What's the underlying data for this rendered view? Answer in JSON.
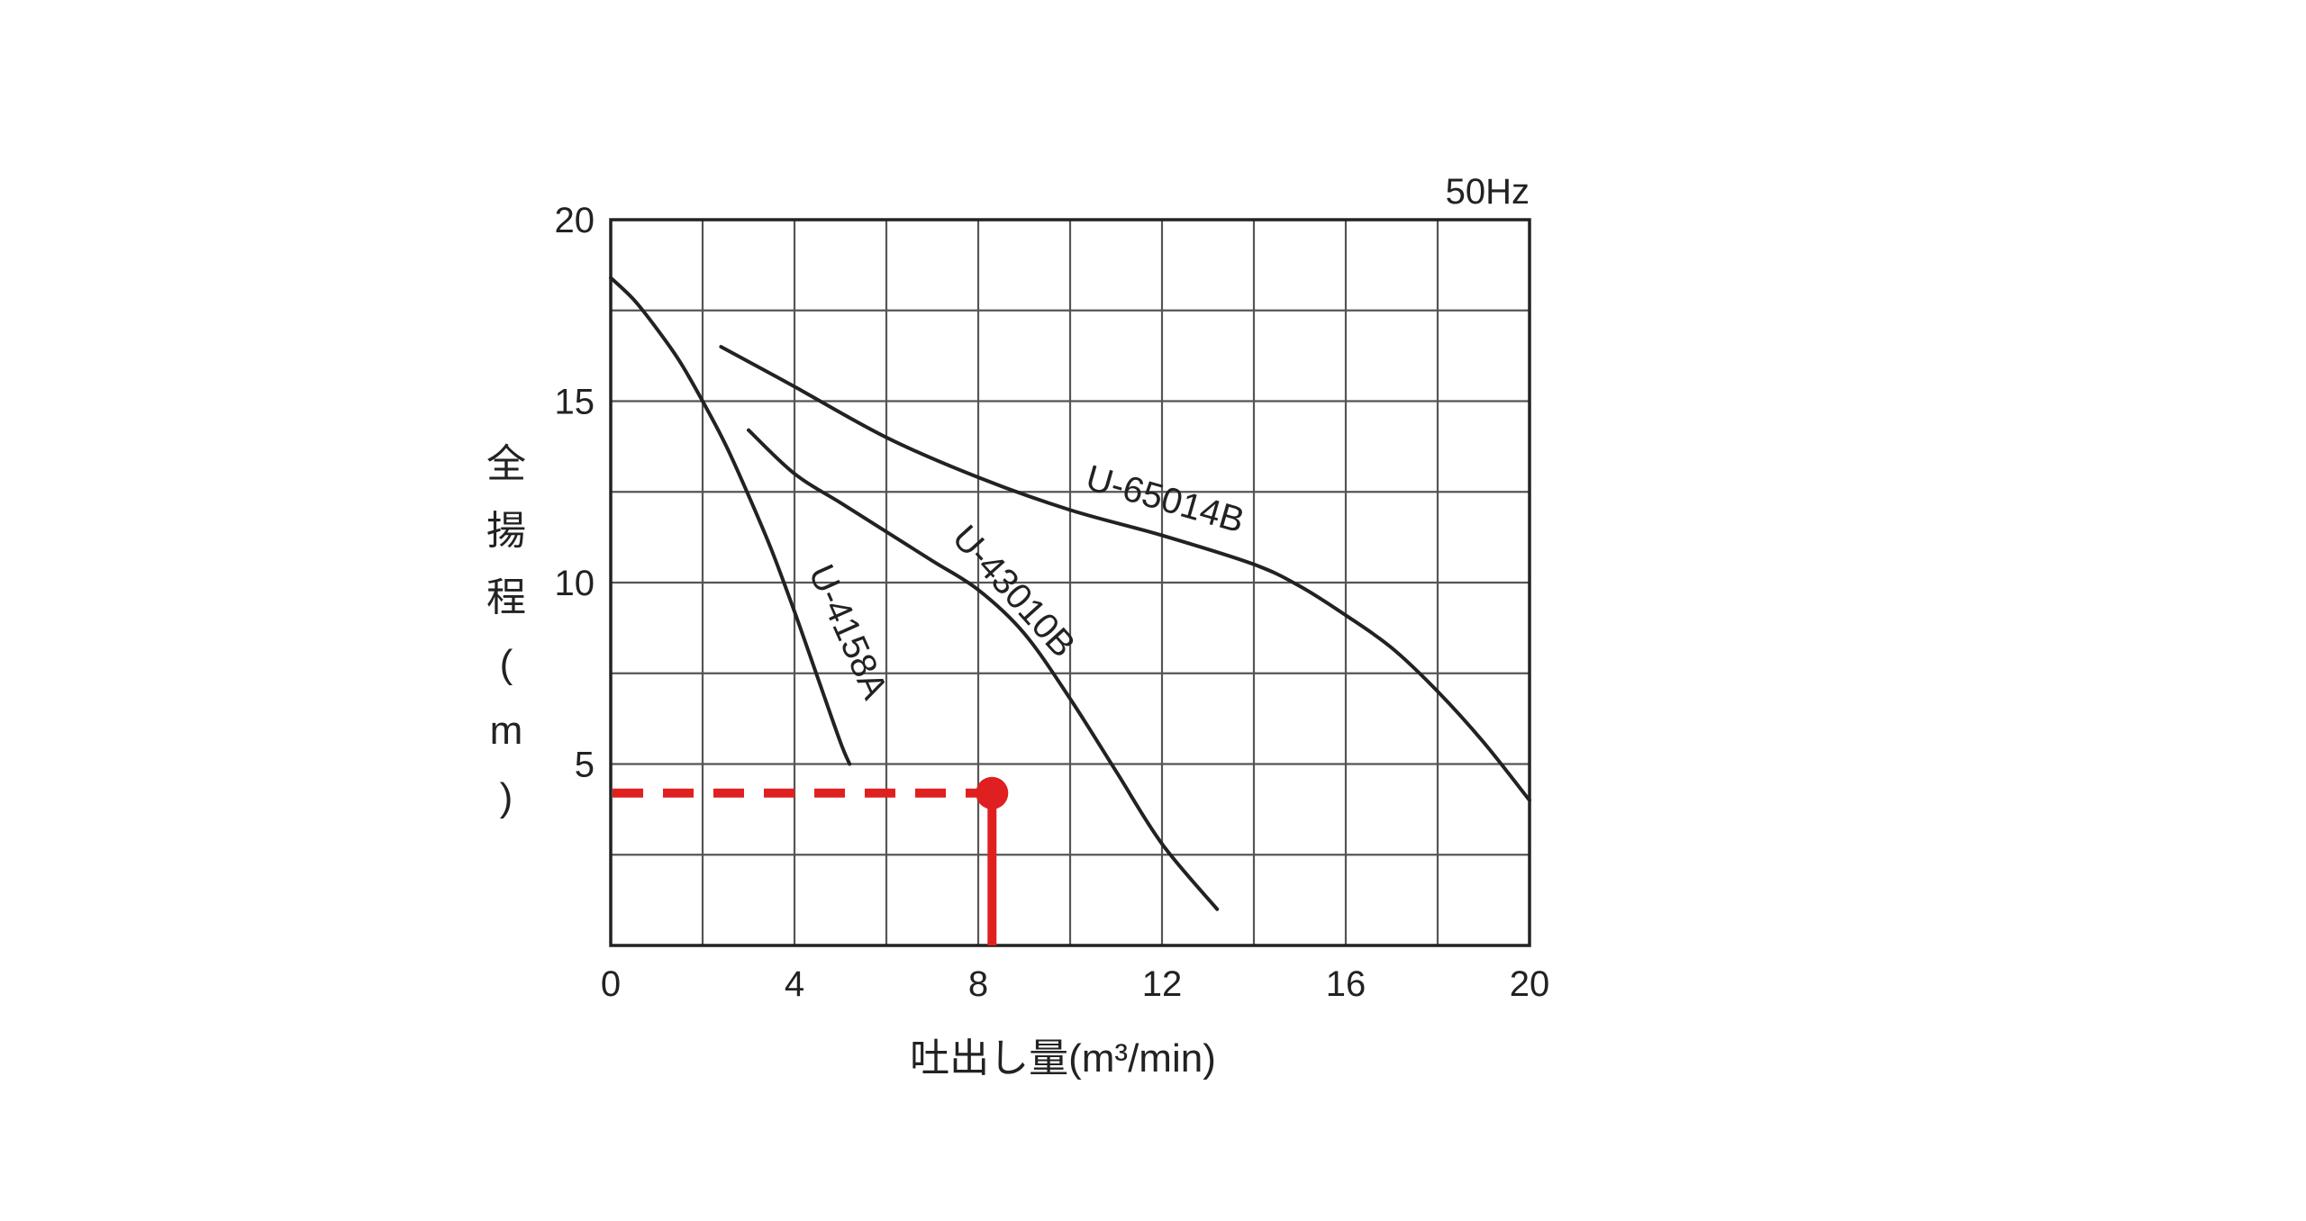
{
  "chart_data": {
    "type": "line",
    "title": "",
    "frequency_label": "50Hz",
    "xlabel": "吐出し量(m³/min)",
    "ylabel": [
      "全",
      "揚",
      "程",
      "(",
      "m",
      ")"
    ],
    "xlim": [
      0,
      20
    ],
    "ylim": [
      0,
      20
    ],
    "x_ticks": [
      0,
      4,
      8,
      12,
      16,
      20
    ],
    "y_ticks": [
      5,
      10,
      15,
      20
    ],
    "x_grid": [
      0,
      2,
      4,
      6,
      8,
      10,
      12,
      14,
      16,
      18,
      20
    ],
    "y_grid": [
      0,
      2.5,
      5,
      7.5,
      10,
      12.5,
      15,
      17.5,
      20
    ],
    "grid": true,
    "legend": "none",
    "series": [
      {
        "name": "U-4158A",
        "x": [
          0,
          0.5,
          1.0,
          1.5,
          2.0,
          2.5,
          3.0,
          3.5,
          4.0,
          4.5,
          5.0,
          5.2
        ],
        "y": [
          18.4,
          17.8,
          17.0,
          16.1,
          15.0,
          13.8,
          12.4,
          10.9,
          9.2,
          7.4,
          5.6,
          5.0
        ]
      },
      {
        "name": "U-43010B",
        "x": [
          3.0,
          4.0,
          5.0,
          6.0,
          7.0,
          8.0,
          9.0,
          10.0,
          11.0,
          12.0,
          13.2
        ],
        "y": [
          14.2,
          13.0,
          12.2,
          11.4,
          10.6,
          9.8,
          8.6,
          6.8,
          4.8,
          2.8,
          1.0
        ]
      },
      {
        "name": "U-65014B",
        "x": [
          2.4,
          4.0,
          6.0,
          8.0,
          10.0,
          12.0,
          14.0,
          15.0,
          16.0,
          17.0,
          18.0,
          19.0,
          20.0
        ],
        "y": [
          16.5,
          15.4,
          14.0,
          12.9,
          12.0,
          11.3,
          10.5,
          9.9,
          9.1,
          8.2,
          7.0,
          5.6,
          4.0
        ]
      }
    ],
    "operating_point": {
      "x": 8.3,
      "y": 4.2,
      "color": "#e02020"
    },
    "colors": {
      "curve": "#222222",
      "grid": "#555555",
      "frame": "#222222",
      "highlight": "#e02020"
    }
  }
}
